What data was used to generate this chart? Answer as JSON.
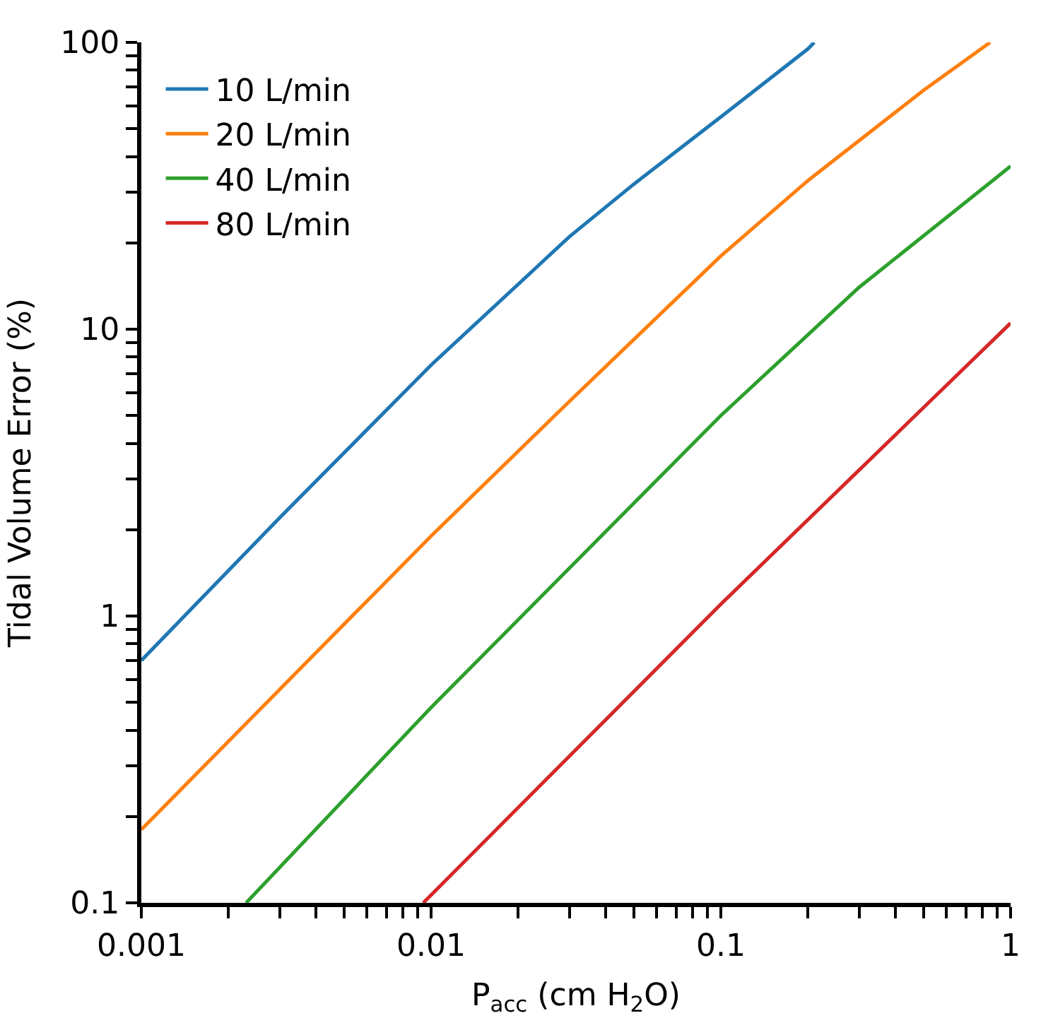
{
  "chart_data": {
    "type": "line",
    "xlabel": "P$_{acc}$ (cm H$_{2}$O)",
    "ylabel": "Tidal Volume Error (%)",
    "log": "xy",
    "legend": "top left",
    "marker": "none",
    "line_style": "solid",
    "xlim": [
      0.001,
      1
    ],
    "ylim": [
      0.1,
      100
    ],
    "xticks": [
      0.001,
      {
        "value": 0.002,
        "label": null
      },
      {
        "value": 0.003,
        "label": null
      },
      {
        "value": 0.004,
        "label": null
      },
      {
        "value": 0.005,
        "label": null
      },
      {
        "value": 0.006,
        "label": null
      },
      {
        "value": 0.007,
        "label": null
      },
      {
        "value": 0.008,
        "label": null
      },
      {
        "value": 0.009,
        "label": null
      },
      0.01,
      {
        "value": 0.02,
        "label": null
      },
      {
        "value": 0.03,
        "label": null
      },
      {
        "value": 0.04,
        "label": null
      },
      {
        "value": 0.05,
        "label": null
      },
      {
        "value": 0.06,
        "label": null
      },
      {
        "value": 0.07,
        "label": null
      },
      {
        "value": 0.08,
        "label": null
      },
      {
        "value": 0.09,
        "label": null
      },
      0.1,
      {
        "value": 0.2,
        "label": null
      },
      {
        "value": 0.3,
        "label": null
      },
      {
        "value": 0.4,
        "label": null
      },
      {
        "value": 0.5,
        "label": null
      },
      {
        "value": 0.6,
        "label": null
      },
      {
        "value": 0.7,
        "label": null
      },
      {
        "value": 0.8,
        "label": null
      },
      {
        "value": 0.9,
        "label": null
      },
      1
    ],
    "yticks": [
      0.1,
      {
        "value": 0.2,
        "label": null
      },
      {
        "value": 0.3,
        "label": null
      },
      {
        "value": 0.4,
        "label": null
      },
      {
        "value": 0.5,
        "label": null
      },
      {
        "value": 0.6,
        "label": null
      },
      {
        "value": 0.7,
        "label": null
      },
      {
        "value": 0.8,
        "label": null
      },
      {
        "value": 0.9,
        "label": null
      },
      1,
      {
        "value": 2,
        "label": null
      },
      {
        "value": 3,
        "label": null
      },
      {
        "value": 4,
        "label": null
      },
      {
        "value": 5,
        "label": null
      },
      {
        "value": 6,
        "label": null
      },
      {
        "value": 7,
        "label": null
      },
      {
        "value": 8,
        "label": null
      },
      {
        "value": 9,
        "label": null
      },
      10,
      {
        "value": 20,
        "label": null
      },
      {
        "value": 30,
        "label": null
      },
      {
        "value": 40,
        "label": null
      },
      {
        "value": 50,
        "label": null
      },
      {
        "value": 60,
        "label": null
      },
      {
        "value": 70,
        "label": null
      },
      {
        "value": 80,
        "label": null
      },
      {
        "value": 90,
        "label": null
      },
      100
    ],
    "series": [
      {
        "name": "10 L/min",
        "color": "#1f77b4",
        "x": [
          0.001,
          0.003,
          0.01,
          0.03,
          0.05,
          0.1,
          0.2,
          0.21
        ],
        "values": [
          0.7,
          2.2,
          7.5,
          21,
          32,
          55,
          95,
          100
        ]
      },
      {
        "name": "20 L/min",
        "color": "#ff7f0e",
        "x": [
          0.001,
          0.01,
          0.03,
          0.1,
          0.2,
          0.5,
          0.85
        ],
        "values": [
          0.18,
          1.9,
          5.6,
          18,
          33,
          68,
          100
        ]
      },
      {
        "name": "40 L/min",
        "color": "#2ca02c",
        "x": [
          0.0023,
          0.01,
          0.1,
          0.3,
          1
        ],
        "values": [
          0.1,
          0.48,
          5,
          14,
          37
        ]
      },
      {
        "name": "80 L/min",
        "color": "#d62728",
        "x": [
          0.0094,
          0.1,
          1
        ],
        "values": [
          0.1,
          1.1,
          10.5
        ]
      }
    ]
  }
}
